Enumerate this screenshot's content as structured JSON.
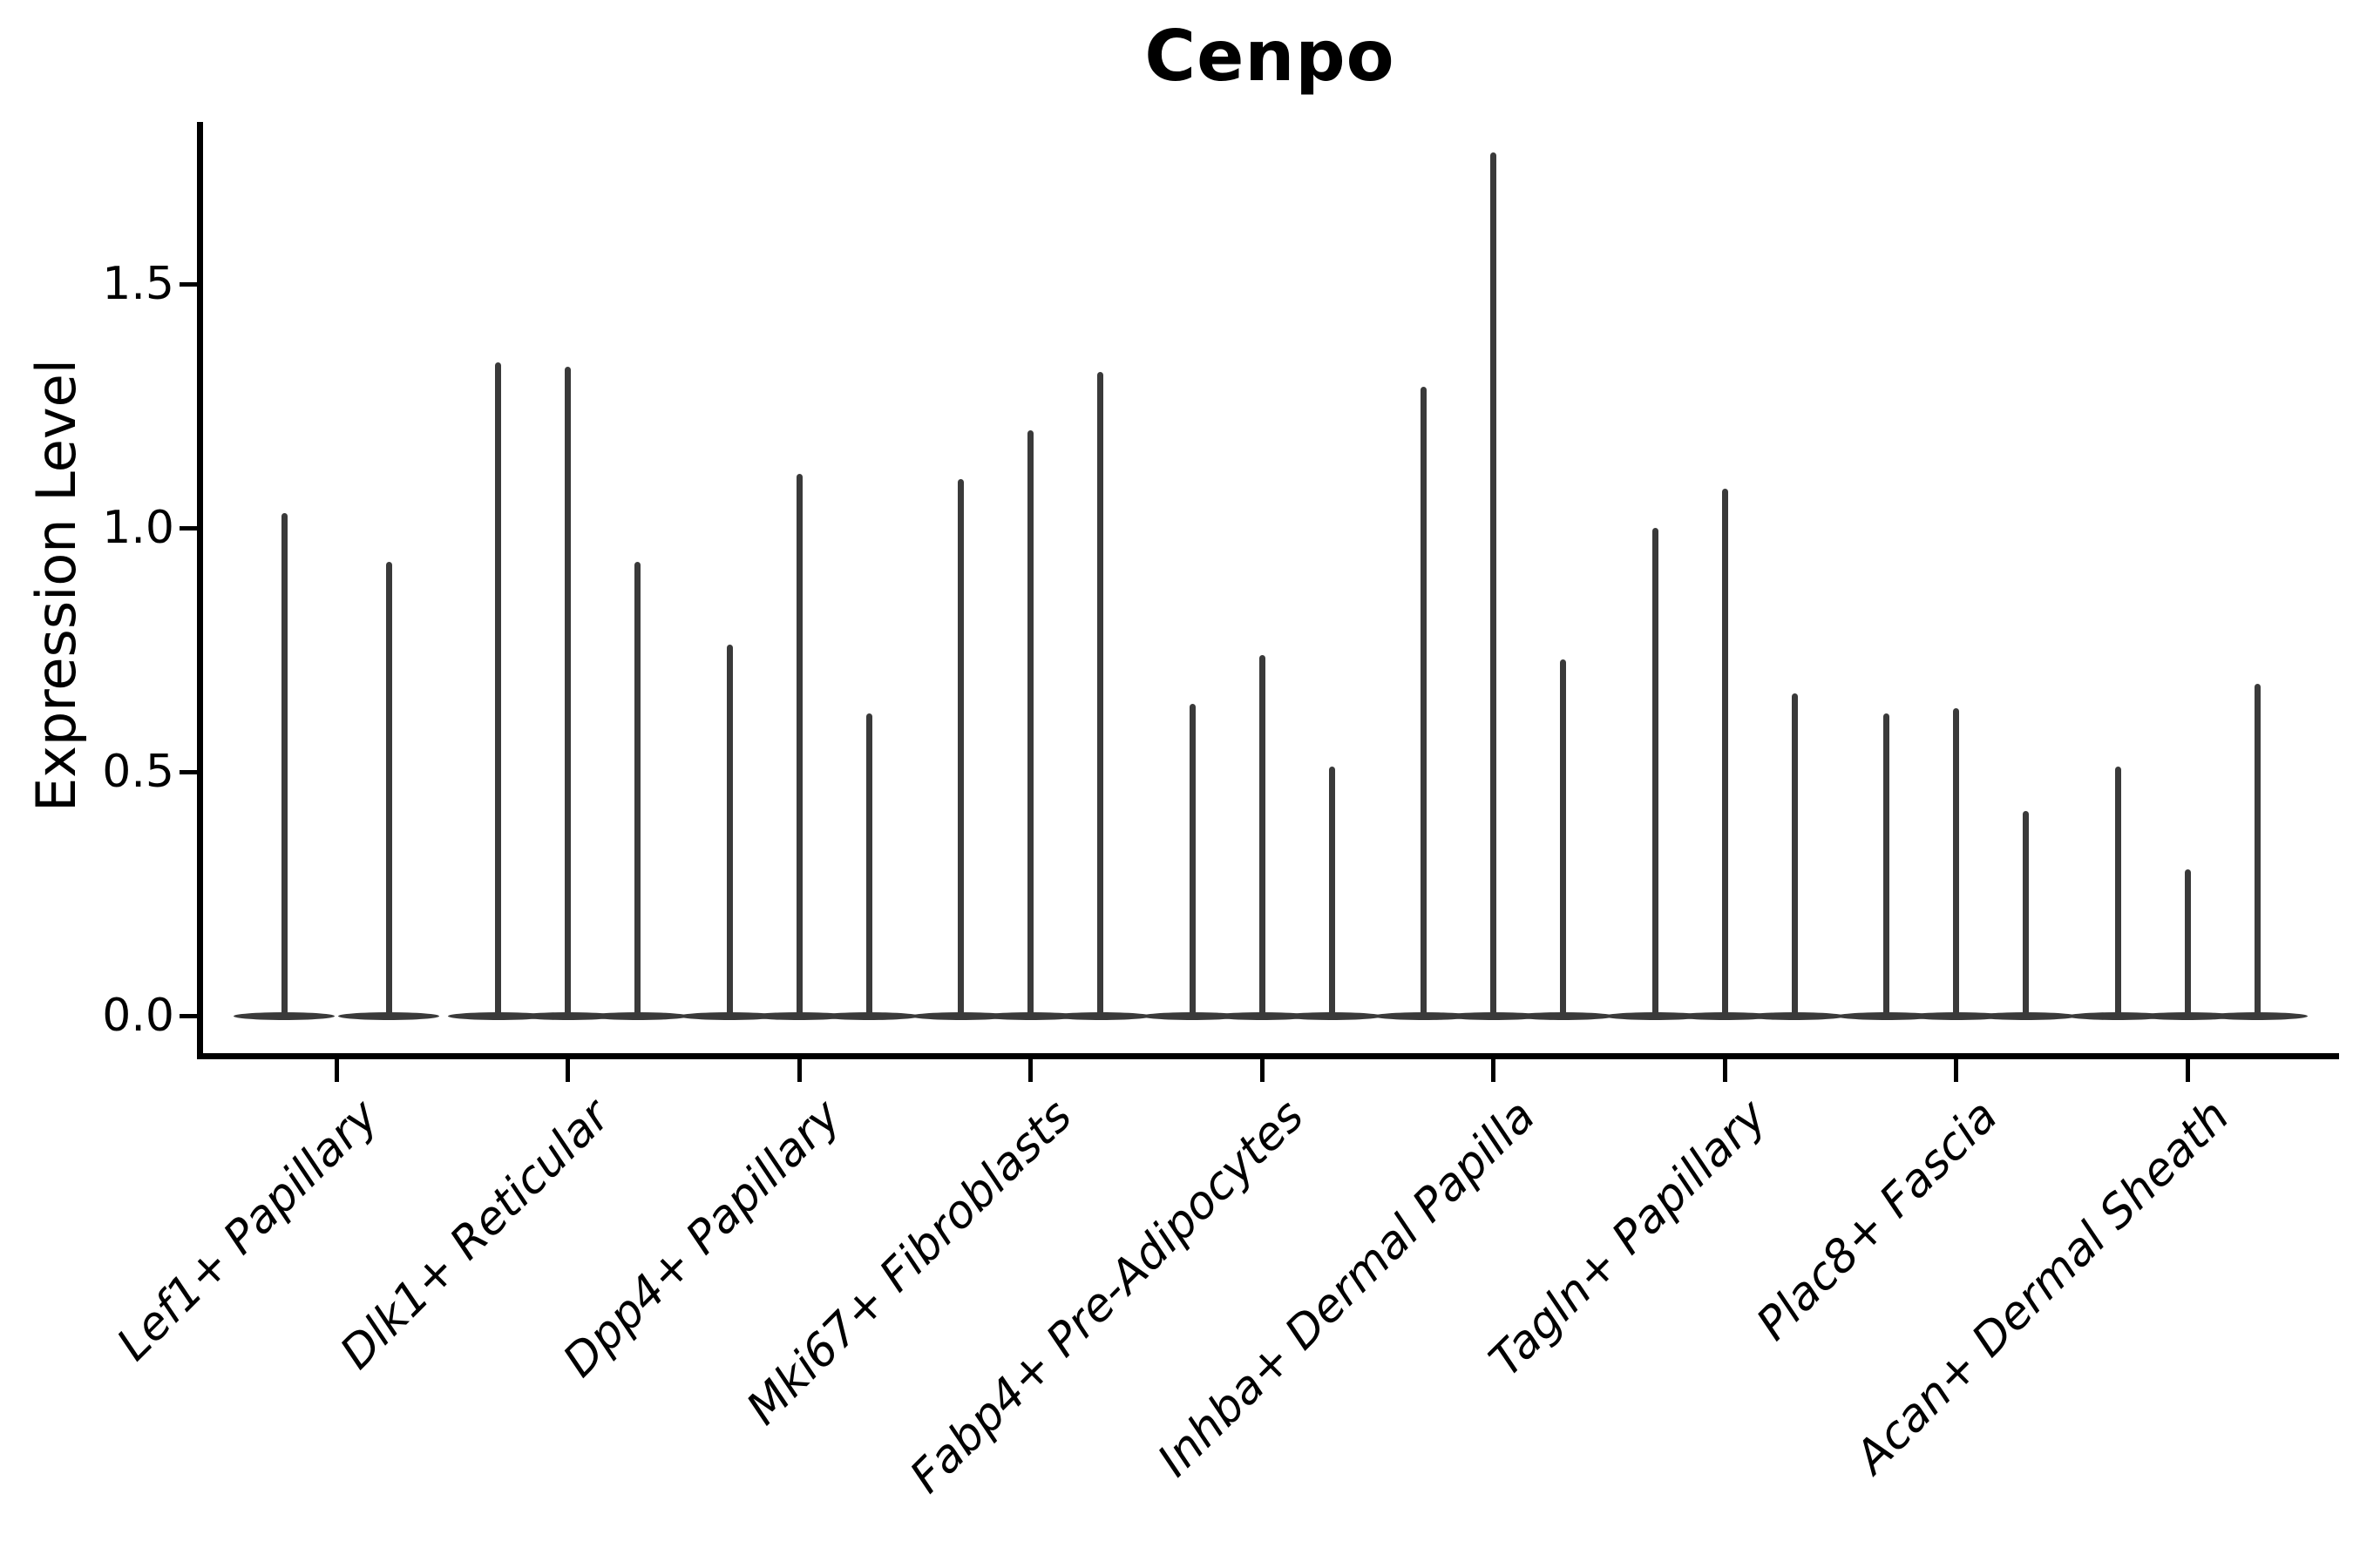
{
  "title": "Cenpo",
  "y_axis": {
    "label": "Expression Level",
    "tick_labels": [
      "0.0",
      "0.5",
      "1.0",
      "1.5"
    ]
  },
  "colors": {
    "violin": "#3a3a3a",
    "axis": "#000000",
    "text": "#000000",
    "background": "#ffffff"
  },
  "chart_data": {
    "type": "violin",
    "title": "Cenpo",
    "xlabel": "",
    "ylabel": "Expression Level",
    "ylim": [
      -0.09,
      1.86
    ],
    "yticks": [
      0.0,
      0.5,
      1.0,
      1.5
    ],
    "grid": false,
    "legend": "none",
    "description": "Collapsed single-cell expression violins: each cluster shows 2-3 near-zero-width violins (flat mass at 0 with a thin spike to the maximum expression value).",
    "categories": [
      "Lef1+ Papillary",
      "Dlk1+ Reticular",
      "Dpp4+ Papillary",
      "Mki67+ Fibroblasts",
      "Fabp4+ Pre-Adipocytes",
      "Inhba+ Dermal Papilla",
      "Tagln+ Papillary",
      "Plac8+ Fascia",
      "Acan+ Dermal Sheath"
    ],
    "series": [
      {
        "name": "Lef1+ Papillary",
        "violin_maxima": [
          1.03,
          0.93
        ]
      },
      {
        "name": "Dlk1+ Reticular",
        "violin_maxima": [
          1.34,
          1.33,
          0.93
        ]
      },
      {
        "name": "Dpp4+ Papillary",
        "violin_maxima": [
          0.76,
          1.11,
          0.62
        ]
      },
      {
        "name": "Mki67+ Fibroblasts",
        "violin_maxima": [
          1.1,
          1.2,
          1.32
        ]
      },
      {
        "name": "Fabp4+ Pre-Adipocytes",
        "violin_maxima": [
          0.64,
          0.74,
          0.51
        ]
      },
      {
        "name": "Inhba+ Dermal Papilla",
        "violin_maxima": [
          1.29,
          1.77,
          0.73
        ]
      },
      {
        "name": "Tagln+ Papillary",
        "violin_maxima": [
          1.0,
          1.08,
          0.66
        ]
      },
      {
        "name": "Plac8+ Fascia",
        "violin_maxima": [
          0.62,
          0.63,
          0.42
        ]
      },
      {
        "name": "Acan+ Dermal Sheath",
        "violin_maxima": [
          0.51,
          0.3,
          0.68
        ]
      }
    ]
  }
}
